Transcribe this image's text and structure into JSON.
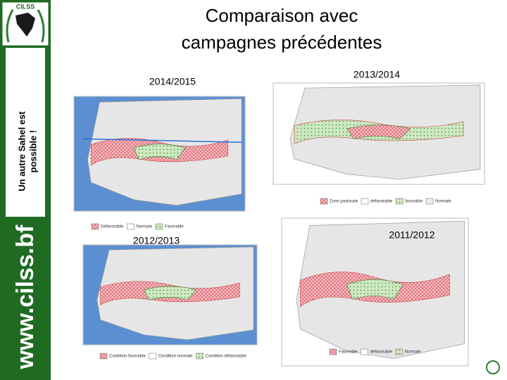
{
  "header": {
    "title_line1": "Comparaison avec",
    "title_line2": "campagnes précédentes"
  },
  "sidebar": {
    "logo": "CILSS",
    "slogan_line1": "Un autre Sahel est",
    "slogan_line2": "possible !",
    "url": "www.cilss.bf"
  },
  "panels": [
    {
      "label": "2014/2015",
      "legend": [
        "Défavorable",
        "Normale",
        "Favorable"
      ]
    },
    {
      "label": "2013/2014",
      "legend": [
        "Zone pastorale",
        "défavorable",
        "favorable",
        "Normale"
      ]
    },
    {
      "label": "2012/2013",
      "legend": [
        "Condition favorable",
        "Condition normale",
        "Condition défavorable"
      ]
    },
    {
      "label": "2011/2012",
      "legend": [
        "Favorable",
        "défavorable",
        "Normale"
      ]
    }
  ]
}
